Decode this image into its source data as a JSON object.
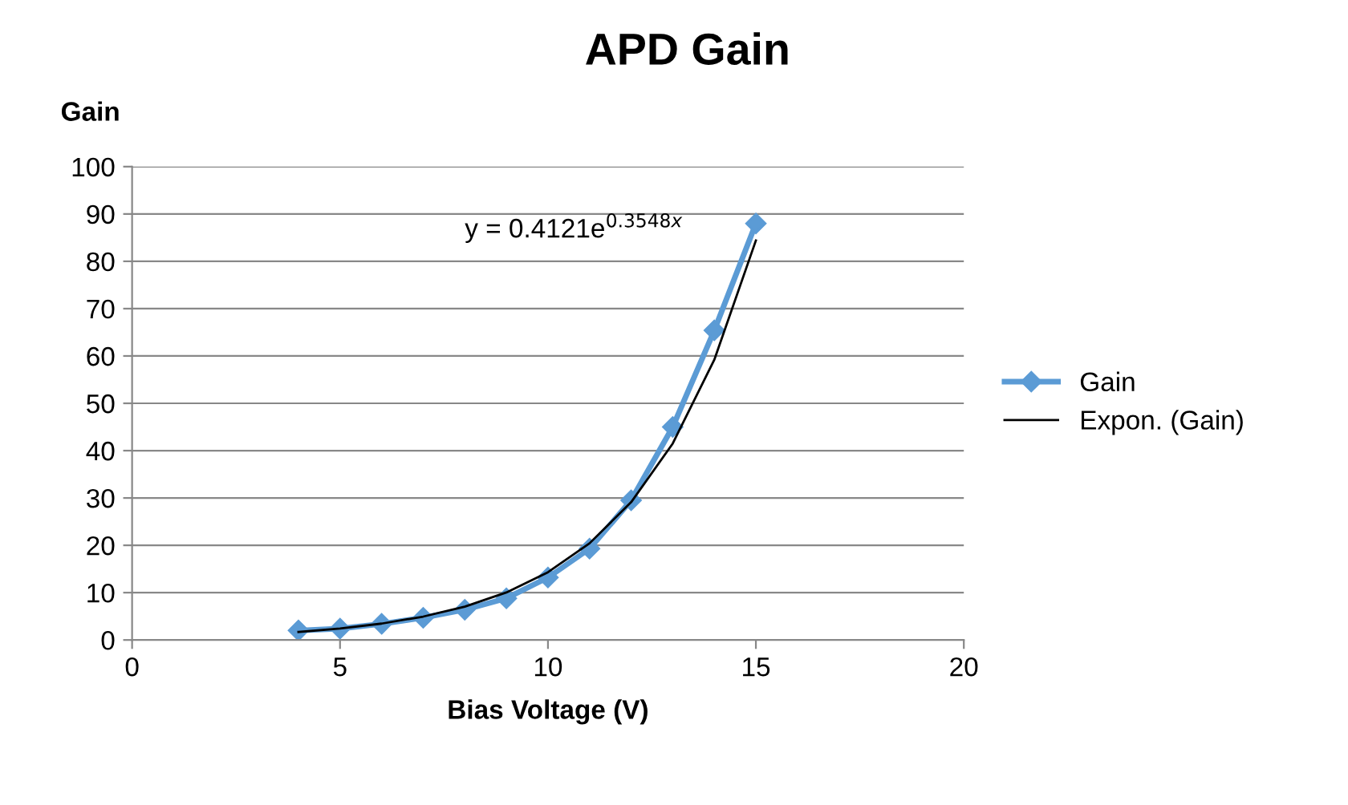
{
  "chart_data": {
    "type": "line",
    "title": "APD Gain",
    "xlabel": "Bias Voltage (V)",
    "ylabel": "Gain",
    "xlim": [
      0,
      20
    ],
    "xticks": [
      0,
      5,
      10,
      15,
      20
    ],
    "ylim": [
      0,
      100
    ],
    "yticks": [
      0,
      10,
      20,
      30,
      40,
      50,
      60,
      70,
      80,
      90,
      100
    ],
    "grid": "y",
    "legend": "right",
    "marker": "diamond",
    "annotations": [
      "y = 0.4121e$^{0.3548x}$"
    ],
    "series": [
      {
        "name": "Gain",
        "color": "#5b9bd5",
        "x": [
          4,
          5,
          6,
          7,
          8,
          9,
          10,
          11,
          12,
          13,
          14,
          15
        ],
        "values": [
          2,
          2.4,
          3.4,
          4.7,
          6.4,
          8.8,
          13.2,
          19.3,
          29.5,
          45,
          65.4,
          88
        ]
      },
      {
        "name": "Expon. (Gain)",
        "type": "line",
        "color": "#000000",
        "marker": "none",
        "x": [
          4,
          5,
          6,
          7,
          8,
          9,
          10,
          11,
          12,
          13,
          14,
          15
        ],
        "values": [
          1.7,
          2.43,
          3.46,
          4.94,
          7.04,
          10.04,
          14.32,
          20.42,
          29.11,
          41.5,
          59.2,
          84.4
        ]
      }
    ]
  }
}
